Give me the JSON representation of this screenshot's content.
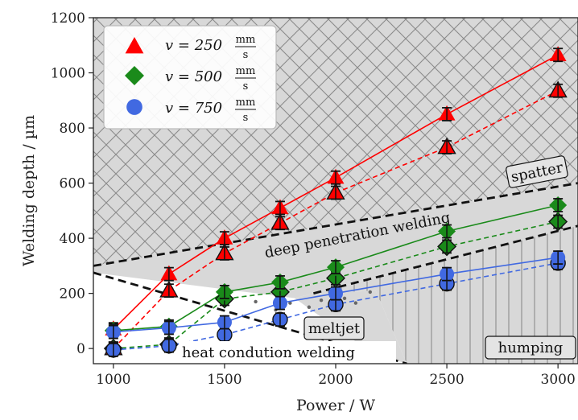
{
  "chart_data": {
    "type": "scatter",
    "xlabel": "Power / W",
    "ylabel": "Welding depth / µm",
    "xlim": [
      910,
      3090
    ],
    "ylim": [
      -55,
      1200
    ],
    "xticks": [
      "1000",
      "1500",
      "2000",
      "2500",
      "3000"
    ],
    "yticks": [
      "0",
      "200",
      "400",
      "600",
      "800",
      "1000",
      "1200"
    ],
    "x": [
      1000,
      1250,
      1500,
      1750,
      2000,
      2500,
      3000
    ],
    "legend_position": "top-left",
    "series": [
      {
        "name": "v = 250 mm/s",
        "legend_prefix": "v = 250",
        "unit_num": "mm",
        "unit_den": "s",
        "marker": "triangle",
        "color": "#ff0000",
        "values_a": [
          70,
          270,
          400,
          510,
          620,
          850,
          1065
        ],
        "values_b": [
          0,
          210,
          345,
          455,
          565,
          730,
          935
        ]
      },
      {
        "name": "v = 500 mm/s",
        "legend_prefix": "v = 500",
        "unit_num": "mm",
        "unit_den": "s",
        "marker": "diamond",
        "color": "#1a8a1a",
        "values_a": [
          65,
          80,
          205,
          240,
          295,
          425,
          520
        ],
        "values_b": [
          0,
          15,
          180,
          205,
          255,
          370,
          460
        ]
      },
      {
        "name": "v = 750 mm/s",
        "legend_prefix": "v = 750",
        "unit_num": "mm",
        "unit_den": "s",
        "marker": "circle",
        "color": "#4169e1",
        "values_a": [
          60,
          75,
          95,
          165,
          200,
          270,
          330
        ],
        "values_b": [
          -5,
          10,
          50,
          105,
          160,
          235,
          310
        ]
      }
    ],
    "regions": {
      "spatter": "spatter",
      "deep_penetration": "deep penetration welding",
      "meltjet": "meltjet",
      "heat_conduction": "heat condution welding",
      "humping": "humping"
    }
  }
}
